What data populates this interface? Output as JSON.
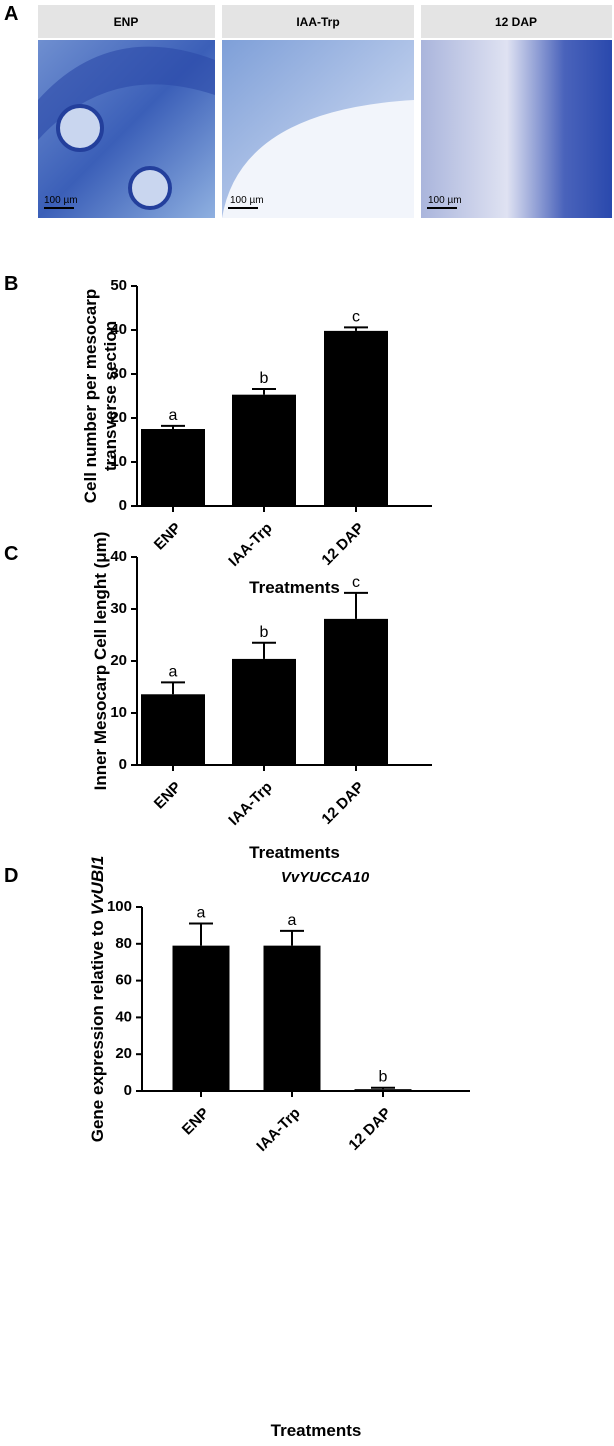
{
  "figure_a": {
    "panel_label": "A",
    "images": [
      {
        "title": "ENP",
        "scale_bar": "100 µm"
      },
      {
        "title": "IAA-Trp",
        "scale_bar": "100 µm"
      },
      {
        "title": "12 DAP",
        "scale_bar": "100 µm"
      }
    ]
  },
  "chart_data": [
    {
      "type": "bar",
      "panel_label": "B",
      "ylabel": [
        "Cell number per mesocarp",
        "transverse section"
      ],
      "xlabel": "Treatments",
      "categories": [
        "ENP",
        "IAA-Trp",
        "12 DAP"
      ],
      "values": [
        17.5,
        25.3,
        39.8
      ],
      "errors": [
        0.7,
        1.3,
        0.8
      ],
      "annotations": [
        "a",
        "b",
        "c"
      ],
      "color": "#000000",
      "ylim": [
        0,
        50
      ],
      "yticks": [
        0,
        10,
        20,
        30,
        40,
        50
      ]
    },
    {
      "type": "bar",
      "panel_label": "C",
      "ylabel": [
        "Inner Mesocarp Cell lenght (μm)"
      ],
      "xlabel": "Treatments",
      "categories": [
        "ENP",
        "IAA-Trp",
        "12 DAP"
      ],
      "values": [
        13.6,
        20.4,
        28.1
      ],
      "errors": [
        2.3,
        3.1,
        5.0
      ],
      "annotations": [
        "a",
        "b",
        "c"
      ],
      "color": "#000000",
      "ylim": [
        0,
        40
      ],
      "yticks": [
        0,
        10,
        20,
        30,
        40
      ]
    },
    {
      "type": "bar",
      "panel_label": "D",
      "title": "VvYUCCA10",
      "ylabel": [
        "Gene expression relative to",
        "VvUBI1"
      ],
      "xlabel": "Treatments",
      "categories": [
        "ENP",
        "IAA-Trp",
        "12 DAP"
      ],
      "values": [
        79,
        79,
        1
      ],
      "errors": [
        12,
        8,
        0.8
      ],
      "annotations": [
        "a",
        "a",
        "b"
      ],
      "color": "#000000",
      "ylim": [
        0,
        100
      ],
      "yticks": [
        0,
        20,
        40,
        60,
        80,
        100
      ]
    }
  ]
}
